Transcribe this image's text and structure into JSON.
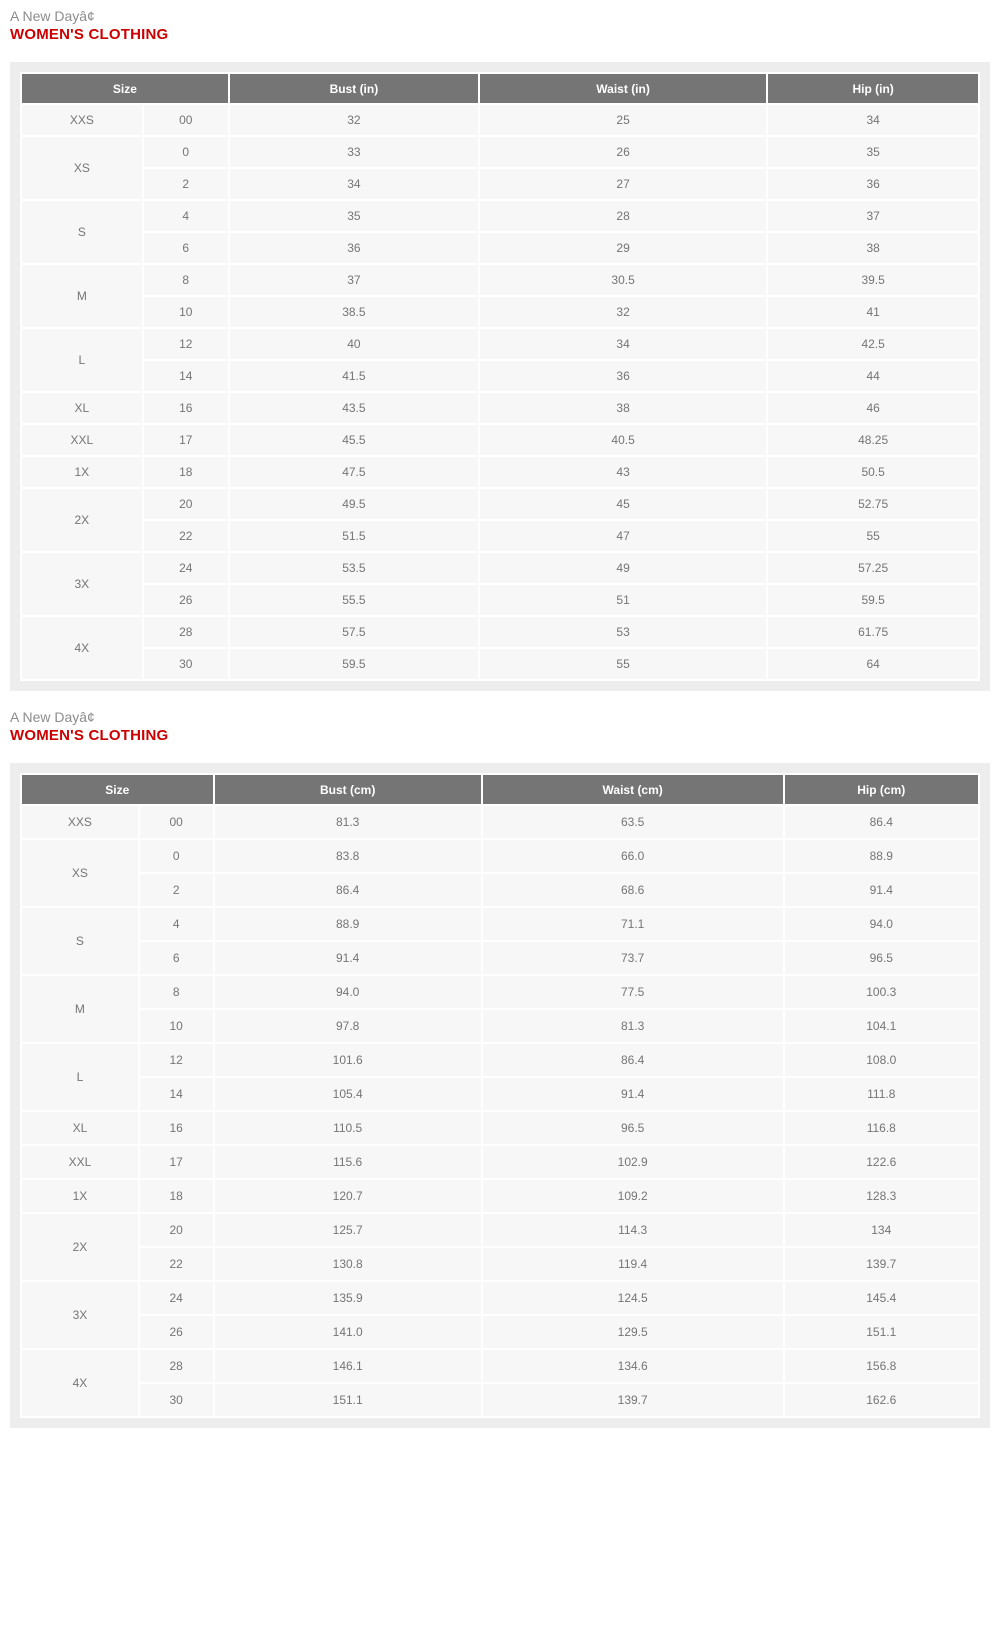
{
  "colors": {
    "brand_red": "#cc0000",
    "table_header_bg": "#757575",
    "chart_bg": "#ededed",
    "cell_bg": "#f7f7f7",
    "cell_text": "#757575",
    "brand_text": "#8c8c8c"
  },
  "sections": [
    {
      "brand": "A New Dayâ¢",
      "category": "WOMEN'S CLOTHING",
      "table": {
        "unit": "inches",
        "columns": [
          "Size",
          "Bust (in)",
          "Waist (in)",
          "Hip (in)"
        ],
        "col_widths": [
          "12.7%",
          "9.0%",
          "26.1%",
          "30.1%",
          "22.1%"
        ],
        "groups": [
          {
            "label": "XXS",
            "rows": [
              [
                "00",
                "32",
                "25",
                "34"
              ]
            ]
          },
          {
            "label": "XS",
            "rows": [
              [
                "0",
                "33",
                "26",
                "35"
              ],
              [
                "2",
                "34",
                "27",
                "36"
              ]
            ]
          },
          {
            "label": "S",
            "rows": [
              [
                "4",
                "35",
                "28",
                "37"
              ],
              [
                "6",
                "36",
                "29",
                "38"
              ]
            ]
          },
          {
            "label": "M",
            "rows": [
              [
                "8",
                "37",
                "30.5",
                "39.5"
              ],
              [
                "10",
                "38.5",
                "32",
                "41"
              ]
            ]
          },
          {
            "label": "L",
            "rows": [
              [
                "12",
                "40",
                "34",
                "42.5"
              ],
              [
                "14",
                "41.5",
                "36",
                "44"
              ]
            ]
          },
          {
            "label": "XL",
            "rows": [
              [
                "16",
                "43.5",
                "38",
                "46"
              ]
            ]
          },
          {
            "label": "XXL",
            "rows": [
              [
                "17",
                "45.5",
                "40.5",
                "48.25"
              ]
            ]
          },
          {
            "label": "1X",
            "rows": [
              [
                "18",
                "47.5",
                "43",
                "50.5"
              ]
            ]
          },
          {
            "label": "2X",
            "rows": [
              [
                "20",
                "49.5",
                "45",
                "52.75"
              ],
              [
                "22",
                "51.5",
                "47",
                "55"
              ]
            ]
          },
          {
            "label": "3X",
            "rows": [
              [
                "24",
                "53.5",
                "49",
                "57.25"
              ],
              [
                "26",
                "55.5",
                "51",
                "59.5"
              ]
            ]
          },
          {
            "label": "4X",
            "rows": [
              [
                "28",
                "57.5",
                "53",
                "61.75"
              ],
              [
                "30",
                "59.5",
                "55",
                "64"
              ]
            ]
          }
        ]
      }
    },
    {
      "brand": "A New Dayâ¢",
      "category": "WOMEN'S CLOTHING",
      "table": {
        "unit": "centimeters",
        "columns": [
          "Size",
          "Bust (cm)",
          "Waist (cm)",
          "Hip (cm)"
        ],
        "col_widths": [
          "12.3%",
          "7.8%",
          "28.0%",
          "31.5%",
          "20.4%"
        ],
        "groups": [
          {
            "label": "XXS",
            "rows": [
              [
                "00",
                "81.3",
                "63.5",
                "86.4"
              ]
            ]
          },
          {
            "label": "XS",
            "rows": [
              [
                "0",
                "83.8",
                "66.0",
                "88.9"
              ],
              [
                "2",
                "86.4",
                "68.6",
                "91.4"
              ]
            ]
          },
          {
            "label": "S",
            "rows": [
              [
                "4",
                "88.9",
                "71.1",
                "94.0"
              ],
              [
                "6",
                "91.4",
                "73.7",
                "96.5"
              ]
            ]
          },
          {
            "label": "M",
            "rows": [
              [
                "8",
                "94.0",
                "77.5",
                "100.3"
              ],
              [
                "10",
                "97.8",
                "81.3",
                "104.1"
              ]
            ]
          },
          {
            "label": "L",
            "rows": [
              [
                "12",
                "101.6",
                "86.4",
                "108.0"
              ],
              [
                "14",
                "105.4",
                "91.4",
                "111.8"
              ]
            ]
          },
          {
            "label": "XL",
            "rows": [
              [
                "16",
                "110.5",
                "96.5",
                "116.8"
              ]
            ]
          },
          {
            "label": "XXL",
            "rows": [
              [
                "17",
                "115.6",
                "102.9",
                "122.6"
              ]
            ]
          },
          {
            "label": "1X",
            "rows": [
              [
                "18",
                "120.7",
                "109.2",
                "128.3"
              ]
            ]
          },
          {
            "label": "2X",
            "rows": [
              [
                "20",
                "125.7",
                "114.3",
                "134"
              ],
              [
                "22",
                "130.8",
                "119.4",
                "139.7"
              ]
            ]
          },
          {
            "label": "3X",
            "rows": [
              [
                "24",
                "135.9",
                "124.5",
                "145.4"
              ],
              [
                "26",
                "141.0",
                "129.5",
                "151.1"
              ]
            ]
          },
          {
            "label": "4X",
            "rows": [
              [
                "28",
                "146.1",
                "134.6",
                "156.8"
              ],
              [
                "30",
                "151.1",
                "139.7",
                "162.6"
              ]
            ]
          }
        ]
      }
    }
  ]
}
